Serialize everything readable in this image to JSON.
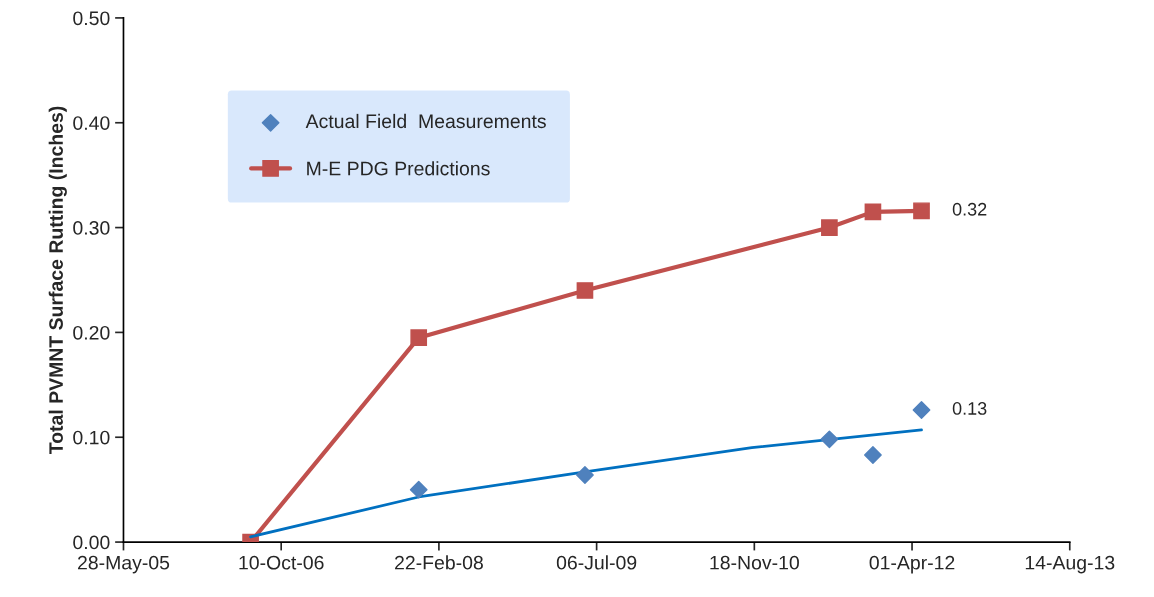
{
  "chart_data": {
    "type": "line",
    "ylabel": "Total PVMNT Surface Rutting (Inches)",
    "x": [
      "2006-07-05",
      "2007-12-20",
      "2009-05-30",
      "2011-07-14",
      "2011-11-29",
      "2012-05-01"
    ],
    "series": [
      {
        "name": "Actual Field  Measurements",
        "type": "scatter",
        "color": "#4f81bd",
        "marker": "diamond",
        "values": [
          null,
          0.05,
          0.064,
          0.098,
          0.083,
          0.126
        ],
        "value_labels": [
          null,
          null,
          null,
          null,
          null,
          "0.13"
        ]
      },
      {
        "name": "M-E PDG Predictions",
        "color": "#c0504d",
        "marker": "square",
        "line_style": "solid",
        "values": [
          0,
          0.195,
          0.24,
          0.3,
          0.315,
          0.316
        ],
        "value_labels": [
          null,
          null,
          null,
          null,
          null,
          "0.32"
        ]
      },
      {
        "color": "#0070c0",
        "marker": "none",
        "line_style": "solid",
        "x": [
          "2006-07-05",
          "2007-12-20",
          "2009-05-30",
          "2010-11-10",
          "2012-05-01"
        ],
        "values": [
          0.005,
          0.043,
          0.067,
          0.09,
          0.107
        ]
      }
    ],
    "xlim": [
      "2005-05-28",
      "2013-08-14"
    ],
    "xticks": [
      {
        "value": "2005-05-28",
        "label": "28-May-05"
      },
      {
        "value": "2006-10-10",
        "label": "10-Oct-06"
      },
      {
        "value": "2008-02-22",
        "label": "22-Feb-08"
      },
      {
        "value": "2009-07-06",
        "label": "06-Jul-09"
      },
      {
        "value": "2010-11-18",
        "label": "18-Nov-10"
      },
      {
        "value": "2012-04-01",
        "label": "01-Apr-12"
      },
      {
        "value": "2013-08-14",
        "label": "14-Aug-13"
      }
    ],
    "ylim": [
      0,
      0.5
    ],
    "yticks": [
      {
        "value": 0,
        "label": "0.00"
      },
      {
        "value": 0.1,
        "label": "0.10"
      },
      {
        "value": 0.2,
        "label": "0.20"
      },
      {
        "value": 0.3,
        "label": "0.30"
      },
      {
        "value": 0.4,
        "label": "0.40"
      },
      {
        "value": 0.5,
        "label": "0.50"
      }
    ],
    "grid": false,
    "legend": "top left"
  }
}
